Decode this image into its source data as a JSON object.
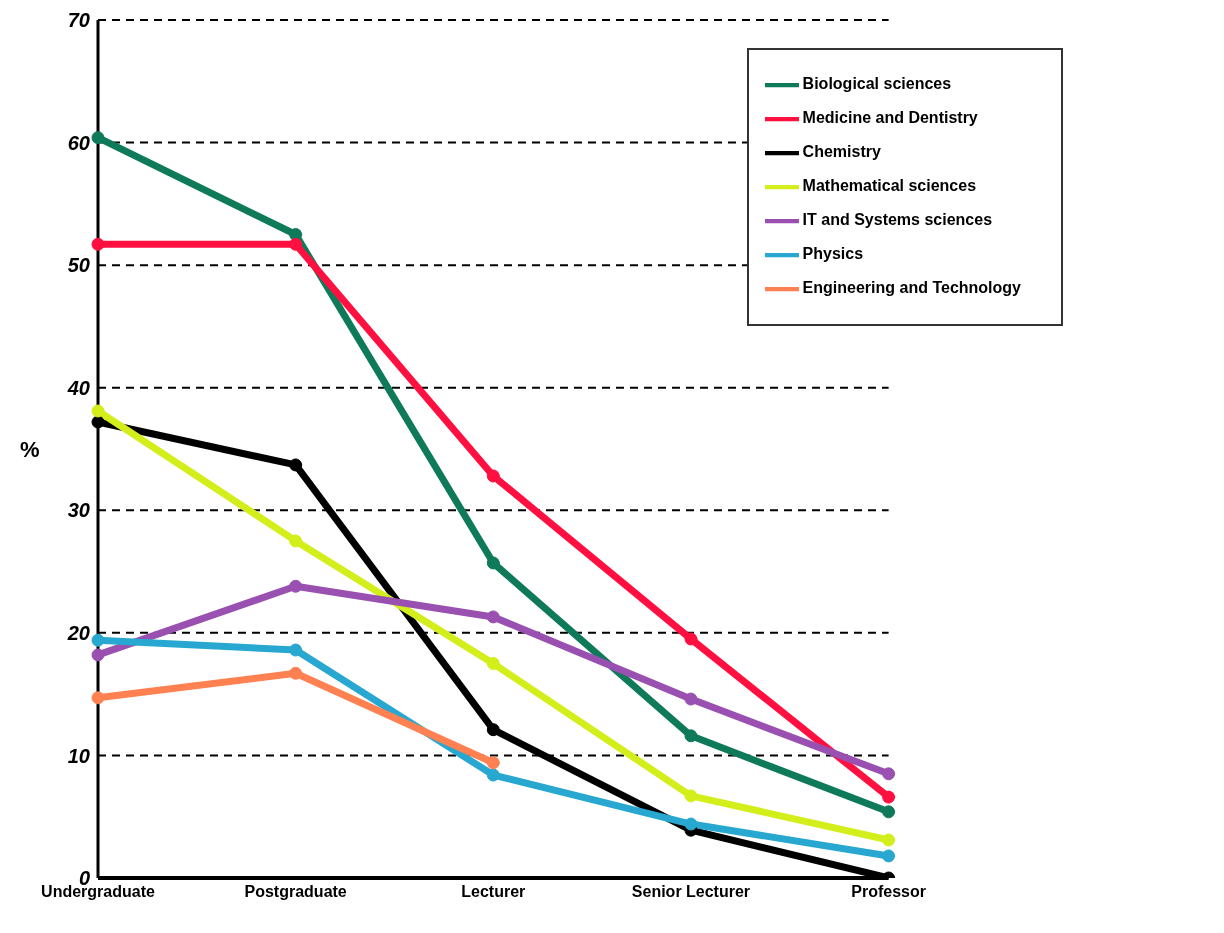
{
  "chart_data": {
    "type": "line",
    "ylabel": "%",
    "categories": [
      "Undergraduate",
      "Postgraduate",
      "Lecturer",
      "Senior Lecturer",
      "Professor"
    ],
    "series": [
      {
        "name": "Biological sciences",
        "color": "#0f7a5a",
        "values": [
          60.4,
          52.5,
          25.7,
          11.6,
          5.4
        ]
      },
      {
        "name": "Medicine and Dentistry",
        "color": "#ff1040",
        "values": [
          51.7,
          51.7,
          32.8,
          19.5,
          6.6
        ]
      },
      {
        "name": "Chemistry",
        "color": "#000000",
        "values": [
          37.2,
          33.7,
          12.1,
          3.9,
          0
        ]
      },
      {
        "name": "Mathematical sciences",
        "color": "#d4ee1c",
        "values": [
          38.1,
          27.5,
          17.5,
          6.7,
          3.1
        ]
      },
      {
        "name": "IT and Systems sciences",
        "color": "#9a50b0",
        "values": [
          18.2,
          23.8,
          21.3,
          14.6,
          8.5
        ]
      },
      {
        "name": "Physics",
        "color": "#28a8d0",
        "values": [
          19.4,
          18.6,
          8.4,
          4.4,
          1.8
        ]
      },
      {
        "name": "Engineering and Technology",
        "color": "#ff8050",
        "values": [
          14.7,
          16.7,
          9.4,
          null,
          null
        ]
      }
    ],
    "ylim": [
      0,
      70
    ],
    "yticks": [
      0,
      10,
      20,
      30,
      40,
      50,
      60,
      70
    ],
    "grid": "y",
    "legend": "top right",
    "marker": "circle",
    "line_style": "solid"
  }
}
